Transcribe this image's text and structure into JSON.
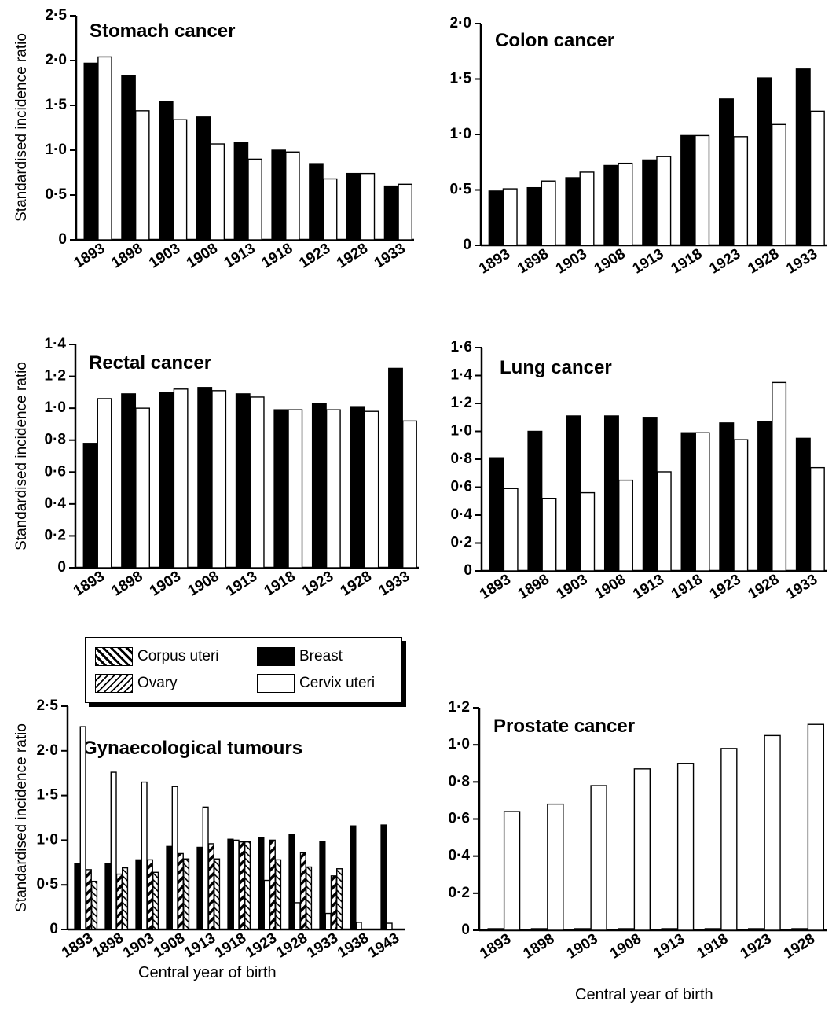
{
  "common": {
    "ylabel": "Standardised incidence ratio",
    "xlabel": "Central year of birth"
  },
  "legend": {
    "corpus_uteri": "Corpus uteri",
    "ovary": "Ovary",
    "breast": "Breast",
    "cervix_uteri": "Cervix uteri"
  },
  "colors": {
    "bar_fill_dark": "#000000",
    "bar_fill_light": "#ffffff",
    "axis": "#000000"
  },
  "chart_data": [
    {
      "id": "stomach",
      "type": "bar",
      "title": "Stomach cancer",
      "ylabel": "Standardised incidence ratio",
      "xlabel": "",
      "ylim": [
        0,
        2.5
      ],
      "yticks": [
        "0",
        "0·5",
        "1·0",
        "1·5",
        "2·0",
        "2·5"
      ],
      "categories": [
        "1893",
        "1898",
        "1903",
        "1908",
        "1913",
        "1918",
        "1923",
        "1928",
        "1933"
      ],
      "series": [
        {
          "key": "black",
          "values": [
            1.97,
            1.83,
            1.54,
            1.37,
            1.09,
            1.0,
            0.85,
            0.74,
            0.6
          ]
        },
        {
          "key": "white",
          "values": [
            2.04,
            1.44,
            1.34,
            1.07,
            0.9,
            0.98,
            0.68,
            0.74,
            0.62
          ]
        }
      ]
    },
    {
      "id": "colon",
      "type": "bar",
      "title": "Colon cancer",
      "ylabel": "",
      "xlabel": "",
      "ylim": [
        0,
        2.0
      ],
      "yticks": [
        "0",
        "0·5",
        "1·0",
        "1·5",
        "2·0"
      ],
      "categories": [
        "1893",
        "1898",
        "1903",
        "1908",
        "1913",
        "1918",
        "1923",
        "1928",
        "1933"
      ],
      "series": [
        {
          "key": "black",
          "values": [
            0.49,
            0.52,
            0.61,
            0.72,
            0.77,
            0.99,
            1.32,
            1.51,
            1.59
          ]
        },
        {
          "key": "white",
          "values": [
            0.51,
            0.58,
            0.66,
            0.74,
            0.8,
            0.99,
            0.98,
            1.09,
            1.21
          ]
        }
      ]
    },
    {
      "id": "rectal",
      "type": "bar",
      "title": "Rectal cancer",
      "ylabel": "Standardised incidence ratio",
      "xlabel": "",
      "ylim": [
        0,
        1.4
      ],
      "yticks": [
        "0",
        "0·2",
        "0·4",
        "0·6",
        "0·8",
        "1·0",
        "1·2",
        "1·4"
      ],
      "categories": [
        "1893",
        "1898",
        "1903",
        "1908",
        "1913",
        "1918",
        "1923",
        "1928",
        "1933"
      ],
      "series": [
        {
          "key": "black",
          "values": [
            0.78,
            1.09,
            1.1,
            1.13,
            1.09,
            0.99,
            1.03,
            1.01,
            1.25
          ]
        },
        {
          "key": "white",
          "values": [
            1.06,
            1.0,
            1.12,
            1.11,
            1.07,
            0.99,
            0.99,
            0.98,
            0.92
          ]
        }
      ]
    },
    {
      "id": "lung",
      "type": "bar",
      "title": "Lung cancer",
      "ylabel": "",
      "xlabel": "",
      "ylim": [
        0,
        1.6
      ],
      "yticks": [
        "0",
        "0·2",
        "0·4",
        "0·6",
        "0·8",
        "1·0",
        "1·2",
        "1·4",
        "1·6"
      ],
      "categories": [
        "1893",
        "1898",
        "1903",
        "1908",
        "1913",
        "1918",
        "1923",
        "1928",
        "1933"
      ],
      "series": [
        {
          "key": "black",
          "values": [
            0.81,
            1.0,
            1.11,
            1.11,
            1.1,
            0.99,
            1.06,
            1.07,
            0.95
          ]
        },
        {
          "key": "white",
          "values": [
            0.59,
            0.52,
            0.56,
            0.65,
            0.71,
            0.99,
            0.94,
            1.35,
            0.74
          ]
        }
      ]
    },
    {
      "id": "gyn",
      "type": "bar",
      "title": "Gynaecological tumours",
      "ylabel": "Standardised incidence ratio",
      "xlabel": "Central year of birth",
      "ylim": [
        0,
        2.5
      ],
      "yticks": [
        "0",
        "0·5",
        "1·0",
        "1·5",
        "2·0",
        "2·5"
      ],
      "categories": [
        "1893",
        "1898",
        "1903",
        "1908",
        "1913",
        "1918",
        "1923",
        "1928",
        "1933",
        "1938",
        "1943"
      ],
      "series": [
        {
          "key": "breast",
          "name": "Breast",
          "values": [
            0.74,
            0.74,
            0.78,
            0.93,
            0.92,
            1.01,
            1.03,
            1.06,
            0.98,
            1.16,
            1.17
          ]
        },
        {
          "key": "cervix",
          "name": "Cervix uteri",
          "values": [
            2.27,
            1.76,
            1.65,
            1.6,
            1.37,
            1.0,
            0.55,
            0.3,
            0.18,
            0.08,
            0.07
          ]
        },
        {
          "key": "corpus",
          "name": "Corpus uteri",
          "values": [
            0.67,
            0.62,
            0.78,
            0.85,
            0.96,
            0.98,
            1.0,
            0.86,
            0.6,
            null,
            null
          ]
        },
        {
          "key": "ovary",
          "name": "Ovary",
          "values": [
            0.54,
            0.69,
            0.64,
            0.79,
            0.79,
            0.98,
            0.78,
            0.7,
            0.68,
            null,
            null
          ]
        }
      ]
    },
    {
      "id": "prostate",
      "type": "bar",
      "title": "Prostate cancer",
      "ylabel": "",
      "xlabel": "Central year of birth",
      "ylim": [
        0,
        1.2
      ],
      "yticks": [
        "0",
        "0·2",
        "0·4",
        "0·6",
        "0·8",
        "1·0",
        "1·2"
      ],
      "categories": [
        "1893",
        "1898",
        "1903",
        "1908",
        "1913",
        "1918",
        "1923",
        "1928"
      ],
      "series": [
        {
          "key": "black",
          "values": [
            0.0,
            0.0,
            0.0,
            0.0,
            0.0,
            0.0,
            0.0,
            0.0
          ]
        },
        {
          "key": "white",
          "values": [
            0.64,
            0.68,
            0.78,
            0.87,
            0.9,
            0.98,
            1.05,
            1.11
          ]
        }
      ]
    }
  ]
}
